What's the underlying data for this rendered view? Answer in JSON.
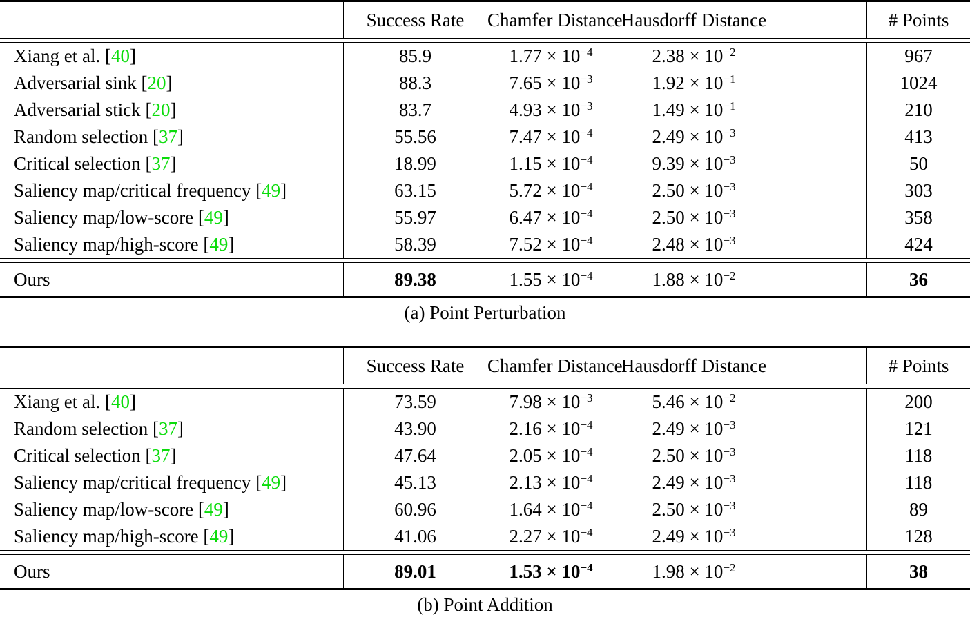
{
  "colors": {
    "citation": "#0ADC0A",
    "text": "#000000",
    "background": "#ffffff"
  },
  "tables": [
    {
      "caption": "(a) Point Perturbation",
      "headers": {
        "label": "",
        "success": "Success Rate",
        "chamfer": "Chamfer Distance",
        "hausdorff": "Hausdorff Distance",
        "points": "# Points"
      },
      "rows": [
        {
          "pre": "Xiang et al. ",
          "open": "[",
          "num": "40",
          "close": "]",
          "success": "85.9",
          "chamfer": {
            "m": "1.77 × 10",
            "s": "−4"
          },
          "hausdorff": {
            "m": "2.38 × 10",
            "s": "−2"
          },
          "points": "967"
        },
        {
          "pre": "Adversarial sink ",
          "open": "[",
          "num": "20",
          "close": "]",
          "success": "88.3",
          "chamfer": {
            "m": "7.65 × 10",
            "s": "−3"
          },
          "hausdorff": {
            "m": "1.92 × 10",
            "s": "−1"
          },
          "points": "1024"
        },
        {
          "pre": "Adversarial stick ",
          "open": "[",
          "num": "20",
          "close": "]",
          "success": "83.7",
          "chamfer": {
            "m": "4.93 × 10",
            "s": "−3"
          },
          "hausdorff": {
            "m": "1.49 × 10",
            "s": "−1"
          },
          "points": "210"
        },
        {
          "pre": "Random selection ",
          "open": "[",
          "num": "37",
          "close": "]",
          "success": "55.56",
          "chamfer": {
            "m": "7.47 × 10",
            "s": "−4"
          },
          "hausdorff": {
            "m": "2.49 × 10",
            "s": "−3"
          },
          "points": "413"
        },
        {
          "pre": "Critical selection ",
          "open": "[",
          "num": "37",
          "close": "]",
          "success": "18.99",
          "chamfer": {
            "m": "1.15 × 10",
            "s": "−4"
          },
          "hausdorff": {
            "m": "9.39 × 10",
            "s": "−3"
          },
          "points": "50"
        },
        {
          "pre": "Saliency map/critical frequency ",
          "open": "[",
          "num": "49",
          "close": "]",
          "success": "63.15",
          "chamfer": {
            "m": "5.72 × 10",
            "s": "−4"
          },
          "hausdorff": {
            "m": "2.50 × 10",
            "s": "−3"
          },
          "points": "303"
        },
        {
          "pre": "Saliency map/low-score ",
          "open": "[",
          "num": "49",
          "close": "]",
          "success": "55.97",
          "chamfer": {
            "m": "6.47 × 10",
            "s": "−4"
          },
          "hausdorff": {
            "m": "2.50 × 10",
            "s": "−3"
          },
          "points": "358"
        },
        {
          "pre": "Saliency map/high-score ",
          "open": "[",
          "num": "49",
          "close": "]",
          "success": "58.39",
          "chamfer": {
            "m": "7.52 × 10",
            "s": "−4"
          },
          "hausdorff": {
            "m": "2.48 × 10",
            "s": "−3"
          },
          "points": "424"
        }
      ],
      "ours": {
        "pre": "Ours",
        "open": "",
        "num": "",
        "close": "",
        "success": "89.38",
        "chamfer": {
          "m": "1.55 × 10",
          "s": "−4"
        },
        "hausdorff": {
          "m": "1.88 × 10",
          "s": "−2"
        },
        "points": "36"
      }
    },
    {
      "caption": "(b) Point Addition",
      "headers": {
        "label": "",
        "success": "Success Rate",
        "chamfer": "Chamfer Distance",
        "hausdorff": "Hausdorff Distance",
        "points": "# Points"
      },
      "rows": [
        {
          "pre": "Xiang et al. ",
          "open": "[",
          "num": "40",
          "close": "]",
          "success": "73.59",
          "chamfer": {
            "m": "7.98 × 10",
            "s": "−3"
          },
          "hausdorff": {
            "m": "5.46 × 10",
            "s": "−2"
          },
          "points": "200"
        },
        {
          "pre": "Random selection ",
          "open": "[",
          "num": "37",
          "close": "]",
          "success": "43.90",
          "chamfer": {
            "m": "2.16 × 10",
            "s": "−4"
          },
          "hausdorff": {
            "m": "2.49 × 10",
            "s": "−3"
          },
          "points": "121"
        },
        {
          "pre": "Critical selection ",
          "open": "[",
          "num": "37",
          "close": "]",
          "success": "47.64",
          "chamfer": {
            "m": "2.05 × 10",
            "s": "−4"
          },
          "hausdorff": {
            "m": "2.50 × 10",
            "s": "−3"
          },
          "points": "118"
        },
        {
          "pre": "Saliency map/critical frequency ",
          "open": "[",
          "num": "49",
          "close": "]",
          "success": "45.13",
          "chamfer": {
            "m": "2.13 × 10",
            "s": "−4"
          },
          "hausdorff": {
            "m": "2.49 × 10",
            "s": "−3"
          },
          "points": "118"
        },
        {
          "pre": "Saliency map/low-score ",
          "open": "[",
          "num": "49",
          "close": "]",
          "success": "60.96",
          "chamfer": {
            "m": "1.64 × 10",
            "s": "−4"
          },
          "hausdorff": {
            "m": "2.50 × 10",
            "s": "−3"
          },
          "points": "89"
        },
        {
          "pre": "Saliency map/high-score ",
          "open": "[",
          "num": "49",
          "close": "]",
          "success": "41.06",
          "chamfer": {
            "m": "2.27 × 10",
            "s": "−4"
          },
          "hausdorff": {
            "m": "2.49 × 10",
            "s": "−3"
          },
          "points": "128"
        }
      ],
      "ours": {
        "pre": "Ours",
        "open": "",
        "num": "",
        "close": "",
        "success": "89.01",
        "chamfer": {
          "m": "1.53 × 10",
          "s": "−4"
        },
        "hausdorff": {
          "m": "1.98 × 10",
          "s": "−2"
        },
        "points": "38"
      }
    }
  ]
}
